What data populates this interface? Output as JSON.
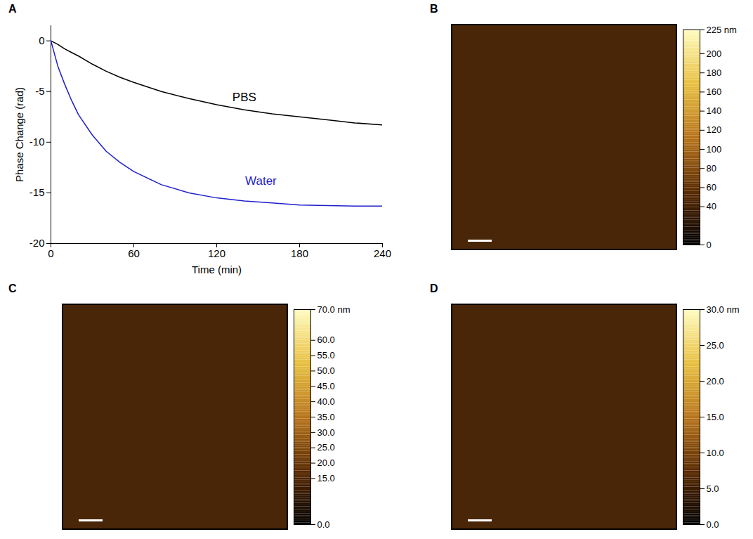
{
  "chart_data": [
    {
      "panel": "A",
      "type": "line",
      "xlabel": "Time (min)",
      "ylabel": "Phase Change (rad)",
      "x": [
        0,
        5,
        10,
        15,
        20,
        30,
        40,
        50,
        60,
        80,
        100,
        120,
        140,
        160,
        180,
        200,
        220,
        240
      ],
      "series": [
        {
          "name": "PBS",
          "color": "#000000",
          "values": [
            0,
            -0.35,
            -0.8,
            -1.15,
            -1.5,
            -2.3,
            -3.0,
            -3.6,
            -4.1,
            -5.0,
            -5.7,
            -6.3,
            -6.8,
            -7.2,
            -7.5,
            -7.8,
            -8.1,
            -8.3
          ]
        },
        {
          "name": "Water",
          "color": "#1f1fcc",
          "values": [
            0,
            -2.5,
            -4.3,
            -5.9,
            -7.3,
            -9.3,
            -10.9,
            -12.0,
            -12.9,
            -14.2,
            -15.0,
            -15.5,
            -15.8,
            -16.0,
            -16.2,
            -16.25,
            -16.3,
            -16.3
          ]
        }
      ],
      "annotations": [
        {
          "text": "PBS",
          "x": 140,
          "y": -5.6
        },
        {
          "text": "Water",
          "x": 152,
          "y": -13.8
        }
      ],
      "xlim": [
        0,
        240
      ],
      "xticks": [
        0,
        60,
        120,
        180,
        240
      ],
      "ylim": [
        -20,
        1.5
      ],
      "yticks": [
        -20,
        -15,
        -10,
        -5,
        0
      ],
      "grid": false
    },
    {
      "panel": "B",
      "type": "image",
      "colorbar_lim": [
        0,
        225
      ],
      "colorbar_ticks": [
        0,
        40,
        60,
        80,
        100,
        120,
        140,
        160,
        180,
        200,
        {
          "value": 225,
          "label": "225 nm"
        }
      ]
    },
    {
      "panel": "C",
      "type": "image",
      "colorbar_lim": [
        0,
        70
      ],
      "colorbar_ticks": [
        {
          "value": 0,
          "label": "0.0"
        },
        {
          "value": 15,
          "label": "15.0"
        },
        {
          "value": 20,
          "label": "20.0"
        },
        {
          "value": 25,
          "label": "25.0"
        },
        {
          "value": 30,
          "label": "30.0"
        },
        {
          "value": 35,
          "label": "35.0"
        },
        {
          "value": 40,
          "label": "40.0"
        },
        {
          "value": 45,
          "label": "45.0"
        },
        {
          "value": 50,
          "label": "50.0"
        },
        {
          "value": 55,
          "label": "55.0"
        },
        {
          "value": 60,
          "label": "60.0"
        },
        {
          "value": 70,
          "label": "70.0 nm"
        }
      ]
    },
    {
      "panel": "D",
      "type": "image",
      "colorbar_lim": [
        0,
        30
      ],
      "colorbar_ticks": [
        {
          "value": 0,
          "label": "0.0"
        },
        {
          "value": 5,
          "label": "5.0"
        },
        {
          "value": 10,
          "label": "10.0"
        },
        {
          "value": 15,
          "label": "15.0"
        },
        {
          "value": 20,
          "label": "20.0"
        },
        {
          "value": 25,
          "label": "25.0"
        },
        {
          "value": 30,
          "label": "30.0 nm"
        }
      ]
    }
  ]
}
